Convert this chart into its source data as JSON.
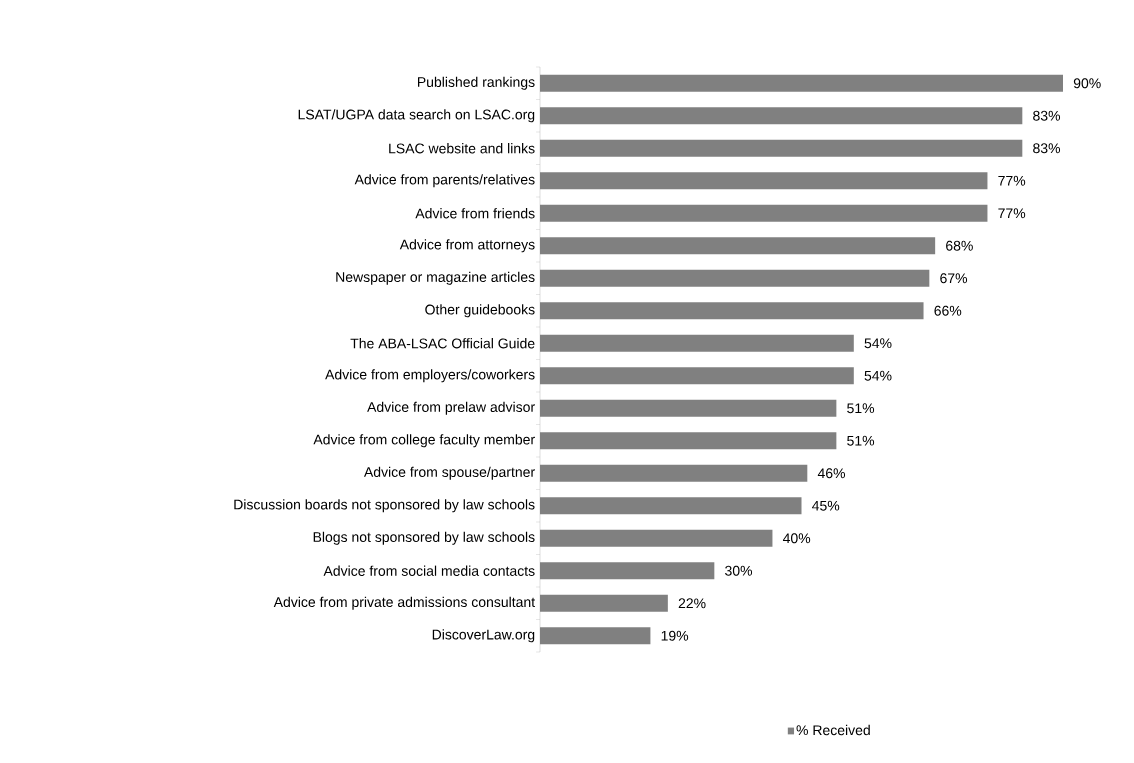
{
  "chart_data": {
    "type": "bar",
    "orientation": "horizontal",
    "legend": "bottom",
    "categories": [
      "Published rankings",
      "LSAT/UGPA data search on LSAC.org",
      "LSAC website and links",
      "Advice from parents/relatives",
      "Advice from friends",
      "Advice from attorneys",
      "Newspaper or magazine articles",
      "Other guidebooks",
      "The ABA-LSAC Official Guide",
      "Advice from employers/coworkers",
      "Advice from prelaw advisor",
      "Advice from college faculty member",
      "Advice from spouse/partner",
      "Discussion boards not sponsored by law schools",
      "Blogs not sponsored by law schools",
      "Advice from social media contacts",
      "Advice from private admissions consultant",
      "DiscoverLaw.org"
    ],
    "series": [
      {
        "name": "% Received",
        "color": "#808080",
        "values": [
          90,
          83,
          83,
          77,
          77,
          68,
          67,
          66,
          54,
          54,
          51,
          51,
          46,
          45,
          40,
          30,
          22,
          19
        ],
        "value_labels": [
          "90%",
          "83%",
          "83%",
          "77%",
          "77%",
          "68%",
          "67%",
          "66%",
          "54%",
          "54%",
          "51%",
          "51%",
          "46%",
          "45%",
          "40%",
          "30%",
          "22%",
          "19%"
        ]
      }
    ]
  }
}
